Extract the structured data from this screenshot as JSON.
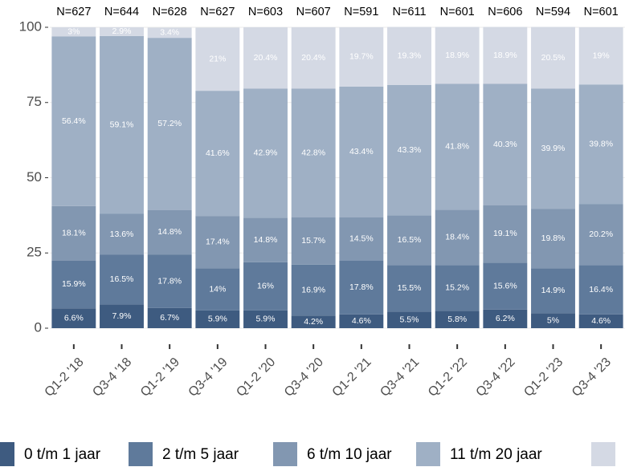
{
  "chart_data": {
    "type": "stacked_bar",
    "categories": [
      "Q1-2 '18",
      "Q3-4 '18",
      "Q1-2 '19",
      "Q3-4 '19",
      "Q1-2 '20",
      "Q3-4 '20",
      "Q1-2 '21",
      "Q3-4 '21",
      "Q1-2 '22",
      "Q3-4 '22",
      "Q1-2 '23",
      "Q3-4 '23"
    ],
    "n_labels": [
      "N=627",
      "N=644",
      "N=628",
      "N=627",
      "N=603",
      "N=607",
      "N=591",
      "N=611",
      "N=601",
      "N=606",
      "N=594",
      "N=601"
    ],
    "ylim": [
      0,
      100
    ],
    "yticks": [
      0,
      25,
      50,
      75,
      100
    ],
    "grid": true,
    "series": [
      {
        "name": "0 t/m 1 jaar",
        "color": "#3e5b80",
        "values": [
          6.6,
          7.9,
          6.7,
          5.9,
          5.9,
          4.2,
          4.6,
          5.5,
          5.8,
          6.2,
          5,
          4.6
        ],
        "value_labels": [
          "6.6%",
          "7.9%",
          "6.7%",
          "5.9%",
          "5.9%",
          "4.2%",
          "4.6%",
          "5.5%",
          "5.8%",
          "6.2%",
          "5%",
          "4.6%"
        ]
      },
      {
        "name": "2 t/m 5 jaar",
        "color": "#5f7a9b",
        "values": [
          15.9,
          16.5,
          17.8,
          14,
          16,
          16.9,
          17.8,
          15.5,
          15.2,
          15.6,
          14.9,
          16.4
        ],
        "value_labels": [
          "15.9%",
          "16.5%",
          "17.8%",
          "14%",
          "16%",
          "16.9%",
          "17.8%",
          "15.5%",
          "15.2%",
          "15.6%",
          "14.9%",
          "16.4%"
        ]
      },
      {
        "name": "6 t/m 10 jaar",
        "color": "#8297b1",
        "values": [
          18.1,
          13.6,
          14.8,
          17.4,
          14.8,
          15.7,
          14.5,
          16.5,
          18.4,
          19.1,
          19.8,
          20.2
        ],
        "value_labels": [
          "18.1%",
          "13.6%",
          "14.8%",
          "17.4%",
          "14.8%",
          "15.7%",
          "14.5%",
          "16.5%",
          "18.4%",
          "19.1%",
          "19.8%",
          "20.2%"
        ]
      },
      {
        "name": "11 t/m 20 jaar",
        "color": "#9fb0c5",
        "values": [
          56.4,
          59.1,
          57.2,
          41.6,
          42.9,
          42.8,
          43.4,
          43.3,
          41.8,
          40.3,
          39.9,
          39.8
        ],
        "value_labels": [
          "56.4%",
          "59.1%",
          "57.2%",
          "41.6%",
          "42.9%",
          "42.8%",
          "43.4%",
          "43.3%",
          "41.8%",
          "40.3%",
          "39.9%",
          "39.8%"
        ]
      },
      {
        "color": "#d4d9e4",
        "values": [
          3,
          2.9,
          3.4,
          21,
          20.4,
          20.4,
          19.7,
          19.3,
          18.9,
          18.9,
          20.5,
          19
        ],
        "value_labels": [
          "3%",
          "2.9%",
          "3.4%",
          "21%",
          "20.4%",
          "20.4%",
          "19.7%",
          "19.3%",
          "18.9%",
          "18.9%",
          "20.5%",
          "19%"
        ]
      }
    ]
  }
}
